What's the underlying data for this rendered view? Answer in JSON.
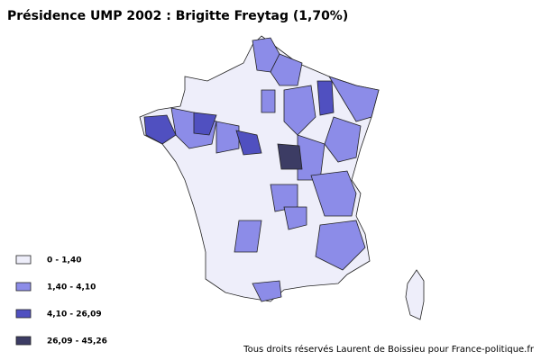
{
  "title": "Présidence UMP 2002 : Brigitte Freytag (1,70%)",
  "legend": [
    {
      "label": "0 - 1,40",
      "color": "#eeeefa"
    },
    {
      "label": "1,40 - 4,10",
      "color": "#8c8ce8"
    },
    {
      "label": "4,10 - 26,09",
      "color": "#5050c0"
    },
    {
      "label": "26,09 - 45,26",
      "color": "#3c3c64"
    }
  ],
  "credit": "Tous droits réservés Laurent de Boissieu pour France-politique.fr"
}
